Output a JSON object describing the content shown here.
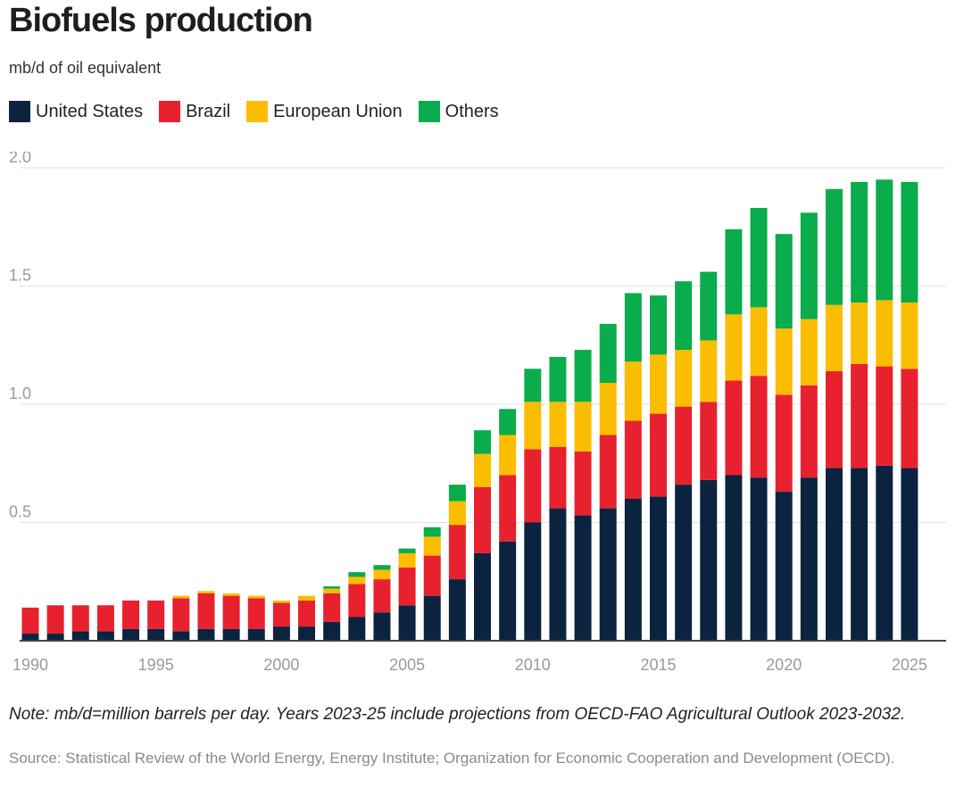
{
  "title": "Biofuels production",
  "subtitle": "mb/d of oil equivalent",
  "legend": [
    {
      "label": "United States",
      "color": "#0c2340"
    },
    {
      "label": "Brazil",
      "color": "#e8212f"
    },
    {
      "label": "European Union",
      "color": "#fbbd00"
    },
    {
      "label": "Others",
      "color": "#0aac4b"
    }
  ],
  "note": "Note: mb/d=million barrels per day. Years 2023-25 include projections from OECD-FAO Agricultural Outlook 2023-2032.",
  "source": "Source: Statistical Review of the World Energy, Energy Institute; Organization for Economic Cooperation and Development (OECD).",
  "chart_data": {
    "type": "bar",
    "stacked": true,
    "title": "Biofuels production",
    "ylabel": "mb/d of oil equivalent",
    "xlabel": "",
    "ylim": [
      0,
      2.0
    ],
    "yticks": [
      "0.5",
      "1.0",
      "1.5",
      "2.0"
    ],
    "ytick_values": [
      0.5,
      1.0,
      1.5,
      2.0
    ],
    "xtick_labels": [
      "1990",
      "1995",
      "2000",
      "2005",
      "2010",
      "2015",
      "2020",
      "2025"
    ],
    "categories": [
      1990,
      1991,
      1992,
      1993,
      1994,
      1995,
      1996,
      1997,
      1998,
      1999,
      2000,
      2001,
      2002,
      2003,
      2004,
      2005,
      2006,
      2007,
      2008,
      2009,
      2010,
      2011,
      2012,
      2013,
      2014,
      2015,
      2016,
      2017,
      2018,
      2019,
      2020,
      2021,
      2022,
      2023,
      2024,
      2025
    ],
    "series": [
      {
        "name": "United States",
        "color": "#0c2340",
        "values": [
          0.03,
          0.03,
          0.04,
          0.04,
          0.05,
          0.05,
          0.04,
          0.05,
          0.05,
          0.05,
          0.06,
          0.06,
          0.08,
          0.1,
          0.12,
          0.15,
          0.19,
          0.26,
          0.37,
          0.42,
          0.5,
          0.56,
          0.53,
          0.56,
          0.6,
          0.61,
          0.66,
          0.68,
          0.7,
          0.69,
          0.63,
          0.69,
          0.73,
          0.73,
          0.74,
          0.73
        ]
      },
      {
        "name": "Brazil",
        "color": "#e8212f",
        "values": [
          0.11,
          0.12,
          0.11,
          0.11,
          0.12,
          0.12,
          0.14,
          0.15,
          0.14,
          0.13,
          0.1,
          0.11,
          0.12,
          0.14,
          0.14,
          0.16,
          0.17,
          0.23,
          0.28,
          0.28,
          0.31,
          0.26,
          0.27,
          0.31,
          0.33,
          0.35,
          0.33,
          0.33,
          0.4,
          0.43,
          0.41,
          0.39,
          0.41,
          0.44,
          0.42,
          0.42
        ]
      },
      {
        "name": "European Union",
        "color": "#fbbd00",
        "values": [
          0.0,
          0.0,
          0.0,
          0.0,
          0.0,
          0.0,
          0.01,
          0.01,
          0.01,
          0.01,
          0.01,
          0.02,
          0.02,
          0.03,
          0.04,
          0.06,
          0.08,
          0.1,
          0.14,
          0.17,
          0.2,
          0.19,
          0.21,
          0.22,
          0.25,
          0.25,
          0.24,
          0.26,
          0.28,
          0.29,
          0.28,
          0.28,
          0.28,
          0.26,
          0.28,
          0.28
        ]
      },
      {
        "name": "Others",
        "color": "#0aac4b",
        "values": [
          0.0,
          0.0,
          0.0,
          0.0,
          0.0,
          0.0,
          0.0,
          0.0,
          0.0,
          0.0,
          0.0,
          0.0,
          0.01,
          0.02,
          0.02,
          0.02,
          0.04,
          0.07,
          0.1,
          0.11,
          0.14,
          0.19,
          0.22,
          0.25,
          0.29,
          0.25,
          0.29,
          0.29,
          0.36,
          0.42,
          0.4,
          0.45,
          0.49,
          0.51,
          0.51,
          0.51
        ]
      }
    ]
  }
}
